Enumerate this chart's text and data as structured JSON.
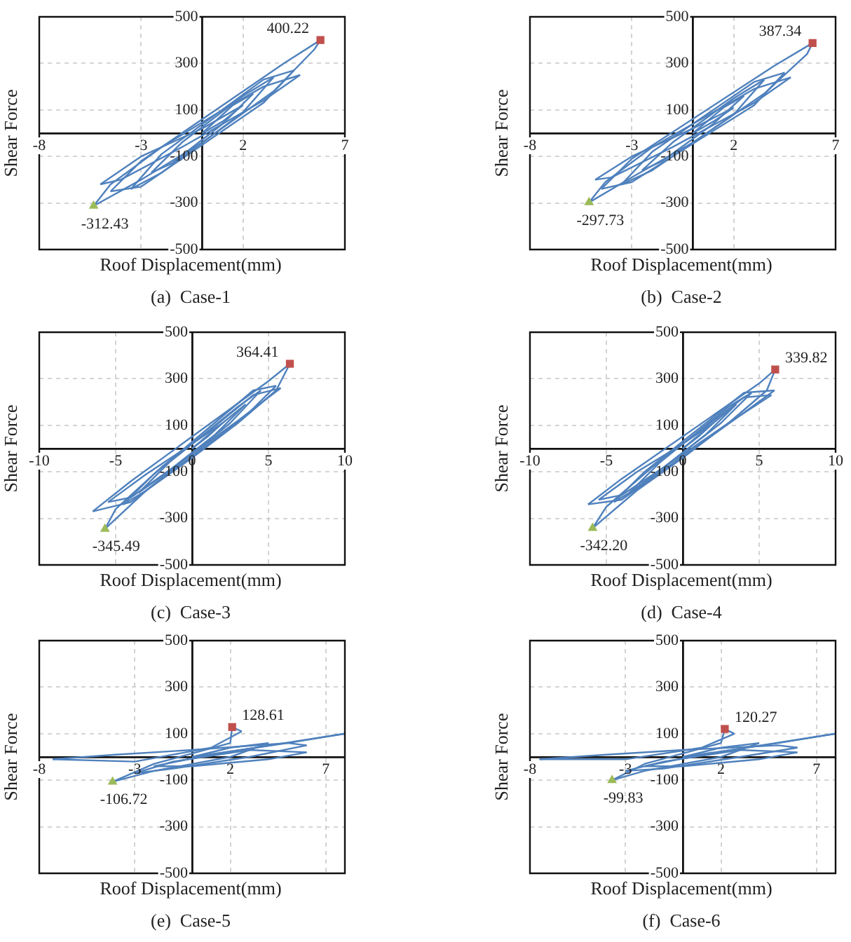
{
  "chart_data": [
    {
      "type": "line",
      "title": "(a)  Case-1",
      "xlabel": "Roof Displacement(mm)",
      "ylabel": "Shear Force",
      "xlim": [
        -8,
        7
      ],
      "xticks": [
        -8,
        -3,
        2,
        7
      ],
      "ylim": [
        -500,
        500
      ],
      "yticks": [
        -500,
        -300,
        -100,
        100,
        300,
        500
      ],
      "grid": true,
      "series": [
        {
          "color": "#4f81bd",
          "x": [
            0,
            1.5,
            2.5
          ],
          "values": [
            0,
            120,
            170
          ]
        },
        {
          "color": "#4f81bd",
          "x": [
            2.5,
            1,
            -1.5,
            -2.5
          ],
          "values": [
            170,
            40,
            -130,
            -170
          ]
        },
        {
          "color": "#4f81bd",
          "x": [
            -2.5,
            -1,
            2,
            3.5
          ],
          "values": [
            -170,
            -40,
            160,
            240
          ]
        },
        {
          "color": "#4f81bd",
          "x": [
            3.5,
            2,
            -2,
            -3.5
          ],
          "values": [
            240,
            90,
            -170,
            -240
          ]
        },
        {
          "color": "#4f81bd",
          "x": [
            -3.5,
            -2,
            3,
            4.5
          ],
          "values": [
            -240,
            -90,
            230,
            270
          ]
        },
        {
          "color": "#4f81bd",
          "x": [
            4.5,
            3,
            -3,
            -4.5
          ],
          "values": [
            270,
            130,
            -230,
            -250
          ]
        },
        {
          "color": "#4f81bd",
          "x": [
            -4.5,
            -3,
            4,
            5.8
          ],
          "values": [
            -250,
            -120,
            300,
            400.22
          ]
        },
        {
          "color": "#4f81bd",
          "x": [
            5.8,
            5.5,
            3.5,
            0,
            -3,
            -5.33
          ],
          "values": [
            400.22,
            360,
            180,
            -40,
            -200,
            -312.43
          ]
        },
        {
          "color": "#4f81bd",
          "x": [
            -5.33,
            -4.5,
            -2,
            1,
            3,
            4.8
          ],
          "values": [
            -312.43,
            -220,
            -60,
            100,
            200,
            250
          ]
        },
        {
          "color": "#4f81bd",
          "x": [
            4.8,
            3,
            -1,
            -4,
            -5
          ],
          "values": [
            250,
            140,
            -60,
            -200,
            -220
          ]
        },
        {
          "color": "#4f81bd",
          "x": [
            -5,
            -3,
            0,
            2
          ],
          "values": [
            -220,
            -100,
            20,
            120
          ]
        },
        {
          "color": "#4f81bd",
          "x": [
            2,
            1,
            0
          ],
          "values": [
            120,
            50,
            0
          ]
        },
        {
          "type": "scatter",
          "marker": "square",
          "color": "#c0504d",
          "x": [
            5.8
          ],
          "values": [
            400.22
          ],
          "value_labels": [
            "400.22"
          ]
        },
        {
          "type": "scatter",
          "marker": "triangle",
          "color": "#9bbb59",
          "x": [
            -5.33
          ],
          "values": [
            -312.43
          ],
          "value_labels": [
            "-312.43"
          ]
        }
      ]
    },
    {
      "type": "line",
      "title": "(b)  Case-2",
      "xlabel": "Roof Displacement(mm)",
      "ylabel": "Shear Force",
      "xlim": [
        -8,
        7
      ],
      "xticks": [
        -8,
        -3,
        2,
        7
      ],
      "ylim": [
        -500,
        500
      ],
      "yticks": [
        -500,
        -300,
        -100,
        100,
        300,
        500
      ],
      "grid": true,
      "series": [
        {
          "color": "#4f81bd",
          "x": [
            0,
            1.5,
            2.5
          ],
          "values": [
            0,
            110,
            160
          ]
        },
        {
          "color": "#4f81bd",
          "x": [
            2.5,
            1,
            -1.5,
            -2.5
          ],
          "values": [
            160,
            40,
            -120,
            -160
          ]
        },
        {
          "color": "#4f81bd",
          "x": [
            -2.5,
            -1,
            2,
            3.5
          ],
          "values": [
            -160,
            -40,
            150,
            230
          ]
        },
        {
          "color": "#4f81bd",
          "x": [
            3.5,
            2,
            -2,
            -3.5
          ],
          "values": [
            230,
            80,
            -160,
            -220
          ]
        },
        {
          "color": "#4f81bd",
          "x": [
            -3.5,
            -2,
            3,
            4.5
          ],
          "values": [
            -220,
            -80,
            220,
            260
          ]
        },
        {
          "color": "#4f81bd",
          "x": [
            4.5,
            3,
            -3,
            -4.5
          ],
          "values": [
            260,
            120,
            -210,
            -240
          ]
        },
        {
          "color": "#4f81bd",
          "x": [
            -4.5,
            -3,
            4,
            5.87
          ],
          "values": [
            -240,
            -110,
            290,
            387.34
          ]
        },
        {
          "color": "#4f81bd",
          "x": [
            5.87,
            5.6,
            3.5,
            0,
            -3,
            -5.1
          ],
          "values": [
            387.34,
            340,
            170,
            -40,
            -190,
            -297.73
          ]
        },
        {
          "color": "#4f81bd",
          "x": [
            -5.1,
            -4.3,
            -2,
            1,
            3,
            4.8
          ],
          "values": [
            -297.73,
            -210,
            -60,
            90,
            190,
            240
          ]
        },
        {
          "color": "#4f81bd",
          "x": [
            4.8,
            3,
            -1,
            -4,
            -4.8
          ],
          "values": [
            240,
            130,
            -60,
            -190,
            -200
          ]
        },
        {
          "color": "#4f81bd",
          "x": [
            -4.8,
            -3,
            0,
            2
          ],
          "values": [
            -200,
            -100,
            20,
            110
          ]
        },
        {
          "color": "#4f81bd",
          "x": [
            2,
            1,
            0
          ],
          "values": [
            110,
            50,
            0
          ]
        },
        {
          "type": "scatter",
          "marker": "square",
          "color": "#c0504d",
          "x": [
            5.87
          ],
          "values": [
            387.34
          ],
          "value_labels": [
            "387.34"
          ]
        },
        {
          "type": "scatter",
          "marker": "triangle",
          "color": "#9bbb59",
          "x": [
            -5.1
          ],
          "values": [
            -297.73
          ],
          "value_labels": [
            "-297.73"
          ]
        }
      ]
    },
    {
      "type": "line",
      "title": "(c)  Case-3",
      "xlabel": "Roof Displacement(mm)",
      "ylabel": "Shear Force",
      "xlim": [
        -10,
        10
      ],
      "xticks": [
        -10,
        -5,
        0,
        5,
        10
      ],
      "ylim": [
        -500,
        500
      ],
      "yticks": [
        -500,
        -300,
        -100,
        100,
        300,
        500
      ],
      "grid": true,
      "series": [
        {
          "color": "#4f81bd",
          "x": [
            0,
            2,
            3.5
          ],
          "values": [
            0,
            110,
            190
          ]
        },
        {
          "color": "#4f81bd",
          "x": [
            3.5,
            1.5,
            -2,
            -3.5
          ],
          "values": [
            190,
            60,
            -120,
            -190
          ]
        },
        {
          "color": "#4f81bd",
          "x": [
            -3.5,
            -1.5,
            3,
            4.5
          ],
          "values": [
            -190,
            -60,
            180,
            250
          ]
        },
        {
          "color": "#4f81bd",
          "x": [
            4.5,
            2.5,
            -3,
            -4.5
          ],
          "values": [
            250,
            110,
            -180,
            -240
          ]
        },
        {
          "color": "#4f81bd",
          "x": [
            -4.5,
            -2.5,
            4,
            5.5
          ],
          "values": [
            -240,
            -110,
            250,
            270
          ]
        },
        {
          "color": "#4f81bd",
          "x": [
            5.5,
            3.5,
            -4,
            -6.5
          ],
          "values": [
            270,
            140,
            -230,
            -270
          ]
        },
        {
          "color": "#4f81bd",
          "x": [
            -6.5,
            -4,
            5,
            6.4
          ],
          "values": [
            -270,
            -140,
            290,
            364.41
          ]
        },
        {
          "color": "#4f81bd",
          "x": [
            6.4,
            5.5,
            3,
            0,
            -3,
            -5.7
          ],
          "values": [
            364.41,
            250,
            110,
            -40,
            -180,
            -345.49
          ]
        },
        {
          "color": "#4f81bd",
          "x": [
            -5.7,
            -5,
            -2,
            1,
            4,
            5.8
          ],
          "values": [
            -345.49,
            -260,
            -80,
            70,
            230,
            260
          ]
        },
        {
          "color": "#4f81bd",
          "x": [
            5.8,
            3,
            -1,
            -4,
            -5.5
          ],
          "values": [
            260,
            120,
            -70,
            -210,
            -230
          ]
        },
        {
          "color": "#4f81bd",
          "x": [
            -5.5,
            -3,
            0,
            2
          ],
          "values": [
            -230,
            -110,
            20,
            110
          ]
        },
        {
          "color": "#4f81bd",
          "x": [
            2,
            1,
            0
          ],
          "values": [
            110,
            50,
            0
          ]
        },
        {
          "type": "scatter",
          "marker": "square",
          "color": "#c0504d",
          "x": [
            6.4
          ],
          "values": [
            364.41
          ],
          "value_labels": [
            "364.41"
          ]
        },
        {
          "type": "scatter",
          "marker": "triangle",
          "color": "#9bbb59",
          "x": [
            -5.7
          ],
          "values": [
            -345.49
          ],
          "value_labels": [
            "-345.49"
          ]
        }
      ]
    },
    {
      "type": "line",
      "title": "(d)  Case-4",
      "xlabel": "Roof Displacement(mm)",
      "ylabel": "Shear Force",
      "xlim": [
        -10,
        10
      ],
      "xticks": [
        -10,
        -5,
        0,
        5,
        10
      ],
      "ylim": [
        -500,
        500
      ],
      "yticks": [
        -500,
        -300,
        -100,
        100,
        300,
        500
      ],
      "grid": true,
      "series": [
        {
          "color": "#4f81bd",
          "x": [
            0,
            2,
            3.5
          ],
          "values": [
            0,
            110,
            190
          ]
        },
        {
          "color": "#4f81bd",
          "x": [
            3.5,
            1.5,
            -2,
            -3.5
          ],
          "values": [
            190,
            60,
            -120,
            -190
          ]
        },
        {
          "color": "#4f81bd",
          "x": [
            -3.5,
            -1.5,
            3,
            4.5
          ],
          "values": [
            -190,
            -60,
            180,
            240
          ]
        },
        {
          "color": "#4f81bd",
          "x": [
            4.5,
            2.5,
            -3,
            -4.5
          ],
          "values": [
            240,
            110,
            -170,
            -230
          ]
        },
        {
          "color": "#4f81bd",
          "x": [
            -4.5,
            -2.5,
            4,
            6
          ],
          "values": [
            -230,
            -100,
            240,
            250
          ]
        },
        {
          "color": "#4f81bd",
          "x": [
            6,
            3.5,
            -4,
            -6.2
          ],
          "values": [
            250,
            130,
            -220,
            -240
          ]
        },
        {
          "color": "#4f81bd",
          "x": [
            -6.2,
            -4,
            5,
            6.05
          ],
          "values": [
            -240,
            -130,
            280,
            339.82
          ]
        },
        {
          "color": "#4f81bd",
          "x": [
            6.05,
            5.5,
            3,
            0,
            -3,
            -5.9
          ],
          "values": [
            339.82,
            250,
            110,
            -40,
            -180,
            -342.2
          ]
        },
        {
          "color": "#4f81bd",
          "x": [
            -5.9,
            -5,
            -2,
            1,
            4,
            5.8
          ],
          "values": [
            -342.2,
            -250,
            -80,
            70,
            220,
            230
          ]
        },
        {
          "color": "#4f81bd",
          "x": [
            5.8,
            3,
            -1,
            -4,
            -5.5
          ],
          "values": [
            230,
            110,
            -70,
            -200,
            -220
          ]
        },
        {
          "color": "#4f81bd",
          "x": [
            -5.5,
            -3,
            0,
            2
          ],
          "values": [
            -220,
            -100,
            20,
            110
          ]
        },
        {
          "color": "#4f81bd",
          "x": [
            2,
            1,
            0
          ],
          "values": [
            110,
            50,
            0
          ]
        },
        {
          "type": "scatter",
          "marker": "square",
          "color": "#c0504d",
          "x": [
            6.05
          ],
          "values": [
            339.82
          ],
          "value_labels": [
            "339.82"
          ]
        },
        {
          "type": "scatter",
          "marker": "triangle",
          "color": "#9bbb59",
          "x": [
            -5.9
          ],
          "values": [
            -342.2
          ],
          "value_labels": [
            "-342.20"
          ]
        }
      ]
    },
    {
      "type": "line",
      "title": "(e)  Case-5",
      "xlabel": "Roof Displacement(mm)",
      "ylabel": "Shear Force",
      "xlim": [
        -8,
        8
      ],
      "xticks": [
        -8,
        -3,
        2,
        7
      ],
      "ylim": [
        -500,
        500
      ],
      "yticks": [
        -500,
        -300,
        -100,
        100,
        300,
        500
      ],
      "grid": true,
      "series": [
        {
          "color": "#4f81bd",
          "x": [
            0,
            2,
            4
          ],
          "values": [
            0,
            40,
            60
          ]
        },
        {
          "color": "#4f81bd",
          "x": [
            4,
            2,
            -2,
            -4.16
          ],
          "values": [
            60,
            0,
            -60,
            -106.72
          ]
        },
        {
          "color": "#4f81bd",
          "x": [
            -4.16,
            -2,
            2,
            2.1,
            2.6
          ],
          "values": [
            -106.72,
            -30,
            60,
            128.61,
            110
          ]
        },
        {
          "color": "#4f81bd",
          "x": [
            2.6,
            1,
            -3,
            -7.3
          ],
          "values": [
            110,
            40,
            -20,
            -10
          ]
        },
        {
          "color": "#4f81bd",
          "x": [
            -7.3,
            -4,
            0,
            5,
            6
          ],
          "values": [
            -10,
            10,
            30,
            60,
            50
          ]
        },
        {
          "color": "#4f81bd",
          "x": [
            6,
            3,
            -1,
            -3
          ],
          "values": [
            50,
            0,
            -50,
            -70
          ]
        },
        {
          "color": "#4f81bd",
          "x": [
            -3,
            -1,
            3,
            6
          ],
          "values": [
            -70,
            -20,
            30,
            20
          ]
        },
        {
          "color": "#4f81bd",
          "x": [
            6,
            4,
            0,
            -2
          ],
          "values": [
            20,
            -10,
            -40,
            -40
          ]
        },
        {
          "color": "#4f81bd",
          "x": [
            -2,
            1,
            8
          ],
          "values": [
            -40,
            10,
            100
          ]
        },
        {
          "color": "#4f81bd",
          "x": [
            8,
            5,
            0
          ],
          "values": [
            100,
            60,
            0
          ]
        },
        {
          "type": "scatter",
          "marker": "square",
          "color": "#c0504d",
          "x": [
            2.1
          ],
          "values": [
            128.61
          ],
          "value_labels": [
            "128.61"
          ]
        },
        {
          "type": "scatter",
          "marker": "triangle",
          "color": "#9bbb59",
          "x": [
            -4.16
          ],
          "values": [
            -106.72
          ],
          "value_labels": [
            "-106.72"
          ]
        }
      ]
    },
    {
      "type": "line",
      "title": "(f)  Case-6",
      "xlabel": "Roof Displacement(mm)",
      "ylabel": "Shear Force",
      "xlim": [
        -8,
        8
      ],
      "xticks": [
        -8,
        -3,
        2,
        7
      ],
      "ylim": [
        -500,
        500
      ],
      "yticks": [
        -500,
        -300,
        -100,
        100,
        300,
        500
      ],
      "grid": true,
      "series": [
        {
          "color": "#4f81bd",
          "x": [
            0,
            2,
            4
          ],
          "values": [
            0,
            40,
            60
          ]
        },
        {
          "color": "#4f81bd",
          "x": [
            4,
            2,
            -2,
            -3.7
          ],
          "values": [
            60,
            0,
            -60,
            -99.83
          ]
        },
        {
          "color": "#4f81bd",
          "x": [
            -3.7,
            -2,
            2,
            2.2,
            2.7
          ],
          "values": [
            -99.83,
            -30,
            60,
            120.27,
            100
          ]
        },
        {
          "color": "#4f81bd",
          "x": [
            2.7,
            1,
            -3,
            -7.5
          ],
          "values": [
            100,
            40,
            -10,
            -10
          ]
        },
        {
          "color": "#4f81bd",
          "x": [
            -7.5,
            -4,
            0,
            5,
            6
          ],
          "values": [
            -10,
            10,
            30,
            50,
            40
          ]
        },
        {
          "color": "#4f81bd",
          "x": [
            6,
            3,
            -1,
            -3
          ],
          "values": [
            40,
            0,
            -50,
            -60
          ]
        },
        {
          "color": "#4f81bd",
          "x": [
            -3,
            -1,
            3,
            6
          ],
          "values": [
            -60,
            -20,
            30,
            20
          ]
        },
        {
          "color": "#4f81bd",
          "x": [
            6,
            4,
            0,
            -2
          ],
          "values": [
            20,
            -10,
            -40,
            -40
          ]
        },
        {
          "color": "#4f81bd",
          "x": [
            -2,
            1,
            8
          ],
          "values": [
            -40,
            10,
            100
          ]
        },
        {
          "color": "#4f81bd",
          "x": [
            8,
            5,
            0
          ],
          "values": [
            100,
            60,
            0
          ]
        },
        {
          "type": "scatter",
          "marker": "square",
          "color": "#c0504d",
          "x": [
            2.2
          ],
          "values": [
            120.27
          ],
          "value_labels": [
            "120.27"
          ]
        },
        {
          "type": "scatter",
          "marker": "triangle",
          "color": "#9bbb59",
          "x": [
            -3.7
          ],
          "values": [
            -99.83
          ],
          "value_labels": [
            "-99.83"
          ]
        }
      ]
    }
  ]
}
